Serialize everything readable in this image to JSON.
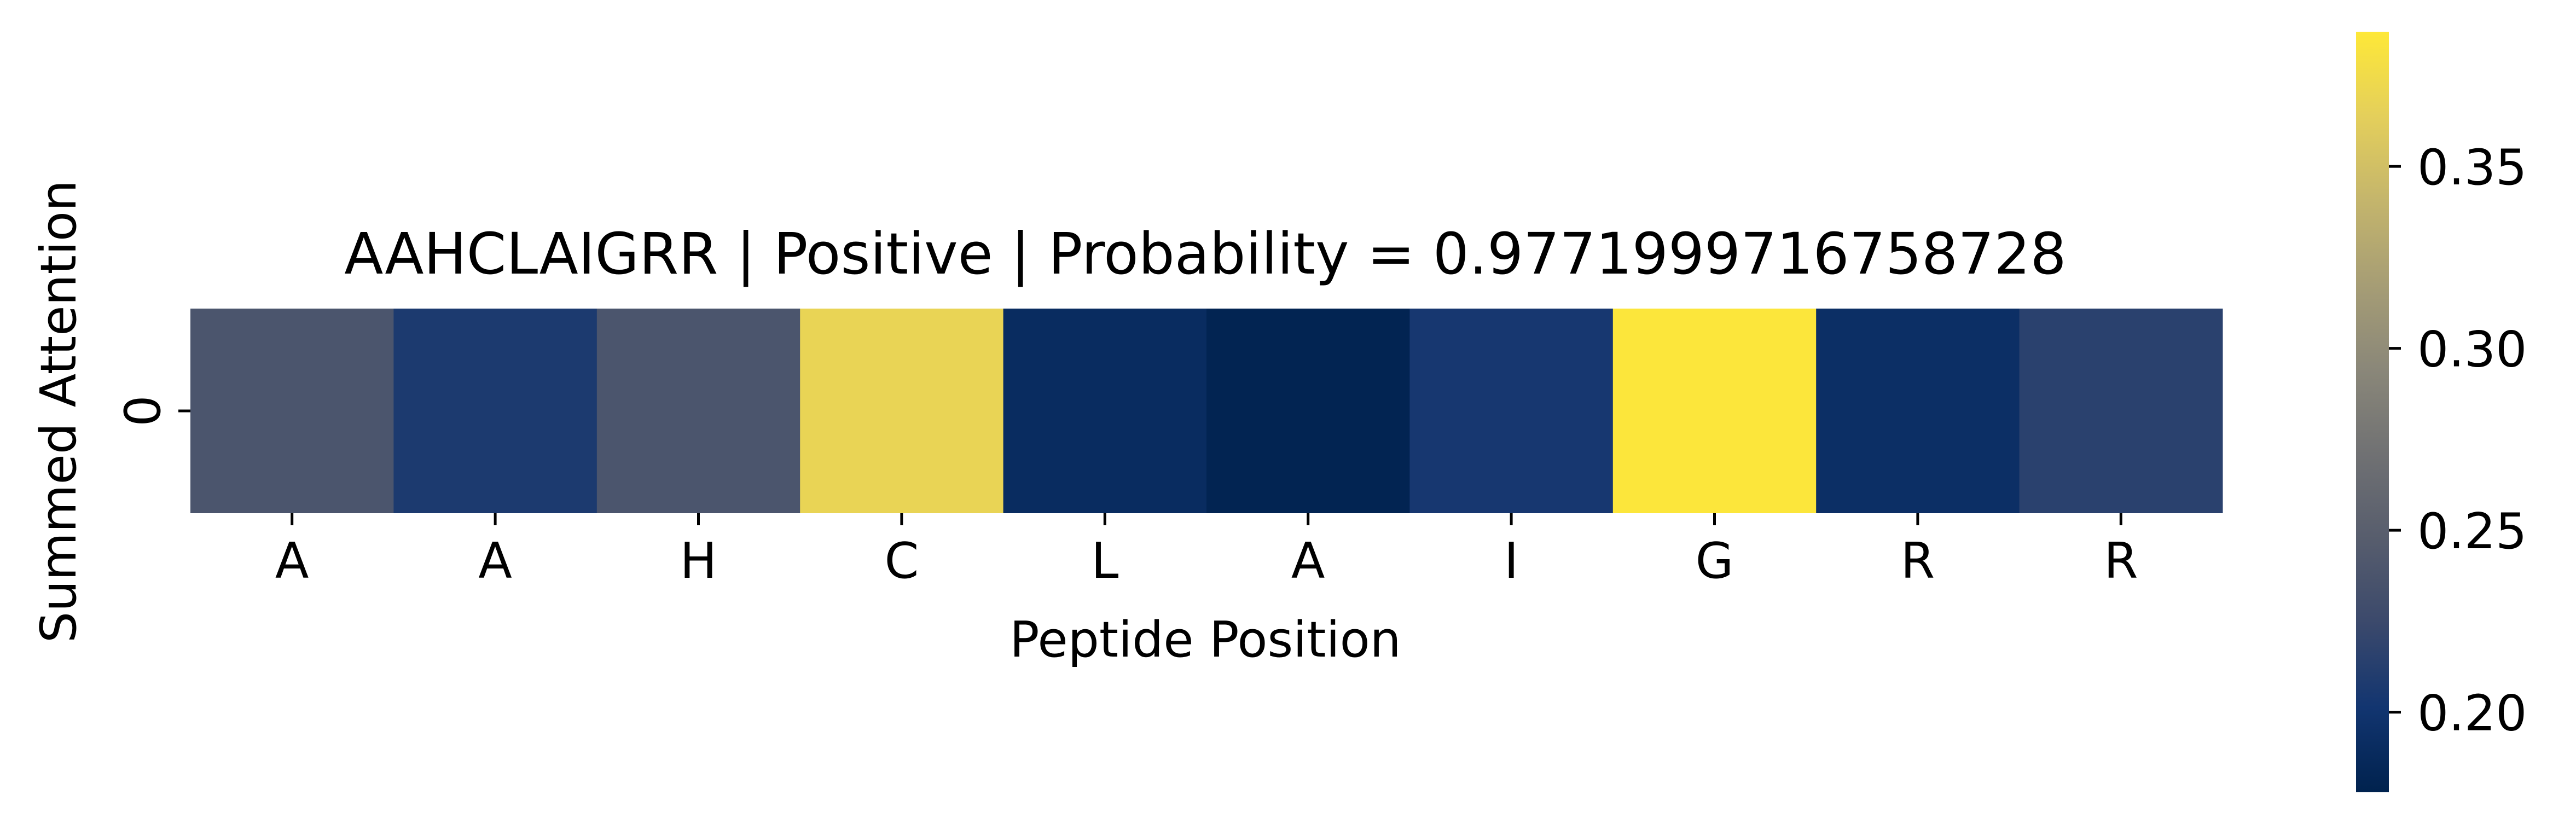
{
  "chart_data": {
    "type": "heatmap",
    "title": "AAHCLAIGRR | Positive | Probability = 0.9771999716758728",
    "xlabel": "Peptide Position",
    "ylabel": "Summed Attention",
    "x_categories": [
      "A",
      "A",
      "H",
      "C",
      "L",
      "A",
      "I",
      "G",
      "R",
      "R"
    ],
    "y_categories": [
      "0"
    ],
    "values": [
      [
        0.238,
        0.207,
        0.238,
        0.368,
        0.19,
        0.181,
        0.204,
        0.385,
        0.194,
        0.215
      ]
    ],
    "colormap": "cividis",
    "colorbar": {
      "range": [
        0.178,
        0.387
      ],
      "ticks": [
        "0.20",
        "0.25",
        "0.30",
        "0.35"
      ],
      "tick_values": [
        0.2,
        0.25,
        0.3,
        0.35
      ]
    },
    "colors": {
      "cmap_stops": [
        "#00224e",
        "#123570",
        "#3b496c",
        "#575d6d",
        "#707173",
        "#8a8779",
        "#a69d75",
        "#c4b56c",
        "#e4cf5b",
        "#fee838"
      ]
    }
  }
}
